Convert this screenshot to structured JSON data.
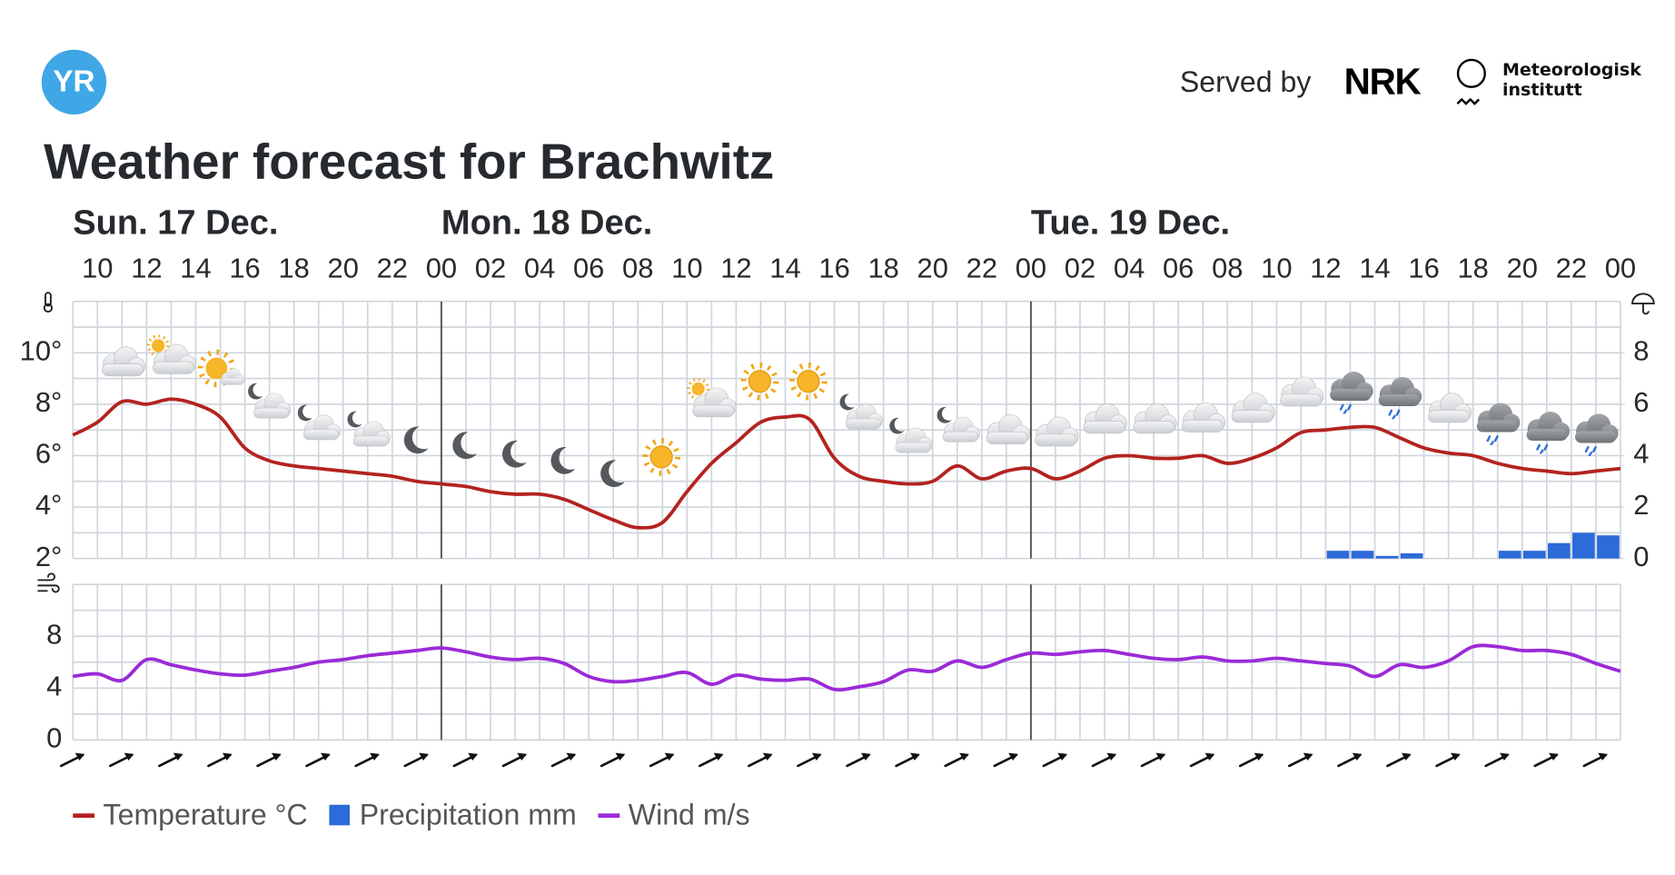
{
  "header": {
    "logo": "YR",
    "served_by": "Served by",
    "partners": [
      "NRK",
      "Meteorologisk institutt"
    ]
  },
  "chart_data": {
    "type": "line",
    "title": "Weather forecast for Brachwitz",
    "days": [
      "Sun. 17 Dec.",
      "Mon. 18 Dec.",
      "Tue. 19 Dec."
    ],
    "categories": [
      null,
      "10",
      null,
      "12",
      null,
      "14",
      null,
      "16",
      null,
      "18",
      null,
      "20",
      null,
      "22",
      null,
      "00",
      null,
      "02",
      null,
      "04",
      null,
      "06",
      null,
      "08",
      null,
      "10",
      null,
      "12",
      null,
      "14",
      null,
      "16",
      null,
      "18",
      null,
      "20",
      null,
      "22",
      null,
      "00",
      null,
      "02",
      null,
      "04",
      null,
      "06",
      null,
      "08",
      null,
      "10",
      null,
      "12",
      null,
      "14",
      null,
      "16",
      null,
      "18",
      null,
      "20",
      null,
      "22",
      null,
      "00"
    ],
    "series": [
      {
        "name": "Temperature °C",
        "color": "#b3231f",
        "axis": "y",
        "values": [
          6.8,
          7.3,
          8.1,
          8.0,
          8.2,
          8.0,
          7.5,
          6.3,
          5.8,
          5.6,
          5.5,
          5.4,
          5.3,
          5.2,
          5.0,
          4.9,
          4.8,
          4.6,
          4.5,
          4.5,
          4.3,
          3.9,
          3.5,
          3.2,
          3.4,
          4.6,
          5.7,
          6.5,
          7.3,
          7.5,
          7.4,
          5.9,
          5.2,
          5.0,
          4.9,
          5.0,
          5.6,
          5.1,
          5.4,
          5.5,
          5.1,
          5.4,
          5.9,
          6.0,
          5.9,
          5.9,
          6.0,
          5.7,
          5.9,
          6.3,
          6.9,
          7.0,
          7.1,
          7.1,
          6.7,
          6.3,
          6.1,
          6.0,
          5.7,
          5.5,
          5.4,
          5.3,
          5.4,
          5.5
        ]
      },
      {
        "name": "Precipitation mm",
        "color": "#2c6bd8",
        "axis": "y2",
        "type": "bar",
        "values": [
          null,
          null,
          null,
          null,
          null,
          null,
          null,
          null,
          null,
          null,
          null,
          null,
          null,
          null,
          null,
          null,
          null,
          null,
          null,
          null,
          null,
          null,
          null,
          null,
          null,
          null,
          null,
          null,
          null,
          null,
          null,
          null,
          null,
          null,
          null,
          null,
          null,
          null,
          null,
          null,
          null,
          null,
          null,
          null,
          null,
          null,
          null,
          null,
          null,
          null,
          null,
          0.3,
          0.3,
          0.1,
          0.2,
          null,
          null,
          null,
          0.3,
          0.3,
          0.6,
          1.0,
          0.9,
          null
        ]
      },
      {
        "name": "Wind m/s",
        "color": "#9b2ad8",
        "axis": "y3",
        "values": [
          4.9,
          5.1,
          4.6,
          6.2,
          5.8,
          5.4,
          5.1,
          5.0,
          5.3,
          5.6,
          6.0,
          6.2,
          6.5,
          6.7,
          6.9,
          7.1,
          6.8,
          6.4,
          6.2,
          6.3,
          5.9,
          4.9,
          4.5,
          4.6,
          4.9,
          5.2,
          4.3,
          5.0,
          4.7,
          4.6,
          4.7,
          3.9,
          4.1,
          4.5,
          5.4,
          5.3,
          6.1,
          5.6,
          6.2,
          6.7,
          6.6,
          6.8,
          6.9,
          6.6,
          6.3,
          6.2,
          6.4,
          6.1,
          6.1,
          6.3,
          6.1,
          5.9,
          5.7,
          4.9,
          5.8,
          5.6,
          6.1,
          7.2,
          7.2,
          6.9,
          6.9,
          6.6,
          5.9,
          5.3
        ]
      }
    ],
    "ylim": [
      2,
      12
    ],
    "yticks": [
      {
        "value": 2,
        "label": "2°"
      },
      {
        "value": 4,
        "label": "4°"
      },
      {
        "value": 6,
        "label": "6°"
      },
      {
        "value": 8,
        "label": "8°"
      },
      {
        "value": 10,
        "label": "10°"
      }
    ],
    "yminorticks": [
      3,
      5,
      7,
      9,
      11,
      12
    ],
    "y2lim": [
      0,
      10
    ],
    "y2ticks": [
      0,
      2,
      4,
      6,
      8
    ],
    "y3lim": [
      0,
      12
    ],
    "y3ticks": [
      0,
      4,
      8
    ],
    "y3minorticks": [
      2,
      6,
      10,
      12
    ],
    "grid": true
  }
}
